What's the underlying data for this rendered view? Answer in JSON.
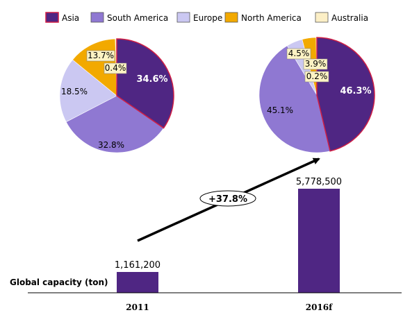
{
  "colors": {
    "asia": "#4f2683",
    "south_america": "#8f78d2",
    "europe": "#cbc8f2",
    "north_america": "#f2a900",
    "australia": "#fcefc6",
    "highlight": "#d01f45",
    "bar": "#4f2683"
  },
  "legend": [
    {
      "key": "asia",
      "label": "Asia"
    },
    {
      "key": "south_america",
      "label": "South America"
    },
    {
      "key": "europe",
      "label": "Europe"
    },
    {
      "key": "north_america",
      "label": "North America"
    },
    {
      "key": "australia",
      "label": "Australia"
    }
  ],
  "chart_data": [
    {
      "type": "pie",
      "category": "2011",
      "slices": [
        {
          "key": "asia",
          "value": 34.6,
          "label": "34.6%"
        },
        {
          "key": "south_america",
          "value": 32.8,
          "label": "32.8%"
        },
        {
          "key": "europe",
          "value": 18.5,
          "label": "18.5%"
        },
        {
          "key": "north_america",
          "value": 13.7,
          "label": "13.7%"
        },
        {
          "key": "australia",
          "value": 0.4,
          "label": "0.4%"
        }
      ]
    },
    {
      "type": "pie",
      "category": "2016f",
      "slices": [
        {
          "key": "asia",
          "value": 46.3,
          "label": "46.3%"
        },
        {
          "key": "south_america",
          "value": 45.1,
          "label": "45.1%"
        },
        {
          "key": "europe",
          "value": 4.5,
          "label": "4.5%"
        },
        {
          "key": "north_america",
          "value": 3.9,
          "label": "3.9%"
        },
        {
          "key": "australia",
          "value": 0.2,
          "label": "0.2%"
        }
      ]
    },
    {
      "type": "bar",
      "categories": [
        "2011",
        "2016f"
      ],
      "values": [
        1161200,
        5778500
      ],
      "value_labels": [
        "1,161,200",
        "5,778,500"
      ],
      "ylabel": "Global capacity (ton)",
      "annotation": "+37.8%"
    }
  ]
}
